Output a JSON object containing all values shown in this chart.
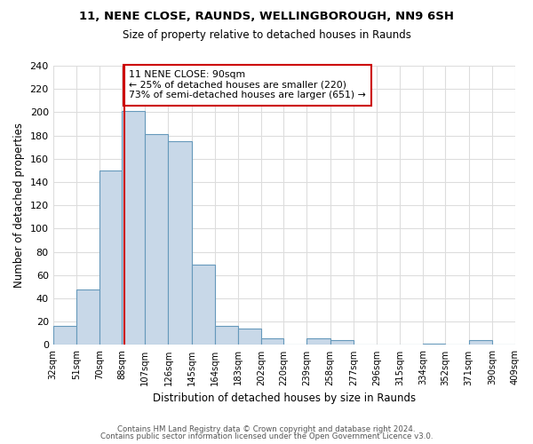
{
  "title1": "11, NENE CLOSE, RAUNDS, WELLINGBOROUGH, NN9 6SH",
  "title2": "Size of property relative to detached houses in Raunds",
  "xlabel": "Distribution of detached houses by size in Raunds",
  "ylabel": "Number of detached properties",
  "bar_edges": [
    32,
    51,
    70,
    88,
    107,
    126,
    145,
    164,
    183,
    202,
    220,
    239,
    258,
    277,
    296,
    315,
    334,
    352,
    371,
    390,
    409
  ],
  "bar_heights": [
    16,
    48,
    150,
    201,
    181,
    175,
    69,
    16,
    14,
    6,
    0,
    6,
    4,
    0,
    0,
    0,
    1,
    0,
    4,
    0
  ],
  "bar_color": "#c8d8e8",
  "bar_edge_color": "#6699bb",
  "property_value": 90,
  "vline_color": "#cc0000",
  "annotation_box_edge": "#cc0000",
  "annotation_text": "11 NENE CLOSE: 90sqm\n← 25% of detached houses are smaller (220)\n73% of semi-detached houses are larger (651) →",
  "ylim": [
    0,
    240
  ],
  "yticks": [
    0,
    20,
    40,
    60,
    80,
    100,
    120,
    140,
    160,
    180,
    200,
    220,
    240
  ],
  "tick_labels": [
    "32sqm",
    "51sqm",
    "70sqm",
    "88sqm",
    "107sqm",
    "126sqm",
    "145sqm",
    "164sqm",
    "183sqm",
    "202sqm",
    "220sqm",
    "239sqm",
    "258sqm",
    "277sqm",
    "296sqm",
    "315sqm",
    "334sqm",
    "352sqm",
    "371sqm",
    "390sqm",
    "409sqm"
  ],
  "footer1": "Contains HM Land Registry data © Crown copyright and database right 2024.",
  "footer2": "Contains public sector information licensed under the Open Government Licence v3.0.",
  "bg_color": "#ffffff",
  "grid_color": "#dddddd"
}
